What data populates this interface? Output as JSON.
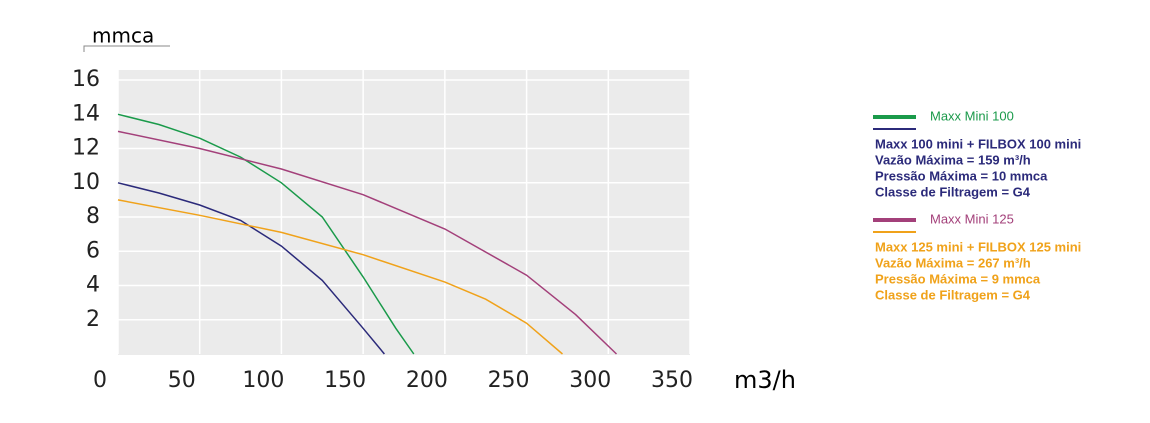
{
  "chart_data": {
    "type": "line",
    "y_label": "mmca",
    "x_label": "m3/h",
    "xlim": [
      0,
      350
    ],
    "ylim": [
      0,
      16
    ],
    "xticks": [
      0,
      50,
      100,
      150,
      200,
      250,
      300,
      350
    ],
    "yticks": [
      2,
      4,
      6,
      8,
      10,
      12,
      14,
      16
    ],
    "grid": true,
    "series": [
      {
        "name": "Maxx Mini 100",
        "color": "#1a9a4a",
        "x": [
          0,
          25,
          50,
          75,
          100,
          125,
          150,
          170,
          181
        ],
        "values": [
          14,
          13.4,
          12.6,
          11.5,
          10,
          8,
          4.5,
          1.5,
          0
        ]
      },
      {
        "name": "Maxx 100 mini + FILBOX 100 mini",
        "color": "#2b2a7a",
        "notes": [
          "Vazão Máxima = 159 m³/h",
          "Pressão Máxima = 10 mmca",
          "Classe de Filtragem = G4"
        ],
        "x": [
          0,
          25,
          50,
          75,
          100,
          125,
          150,
          163
        ],
        "values": [
          10,
          9.4,
          8.7,
          7.8,
          6.3,
          4.3,
          1.5,
          0
        ]
      },
      {
        "name": "Maxx Mini 125",
        "color": "#a3407a",
        "x": [
          0,
          50,
          100,
          150,
          200,
          250,
          280,
          305
        ],
        "values": [
          13,
          12,
          10.8,
          9.3,
          7.3,
          4.6,
          2.3,
          0
        ]
      },
      {
        "name": "Maxx 125 mini + FILBOX 125 mini",
        "color": "#f0a21a",
        "notes": [
          "Vazão Máxima = 267 m³/h",
          "Pressão Máxima = 9 mmca",
          "Classe de Filtragem = G4"
        ],
        "x": [
          0,
          50,
          100,
          150,
          200,
          225,
          250,
          272
        ],
        "values": [
          9,
          8.1,
          7.1,
          5.8,
          4.2,
          3.2,
          1.8,
          0
        ]
      }
    ]
  }
}
